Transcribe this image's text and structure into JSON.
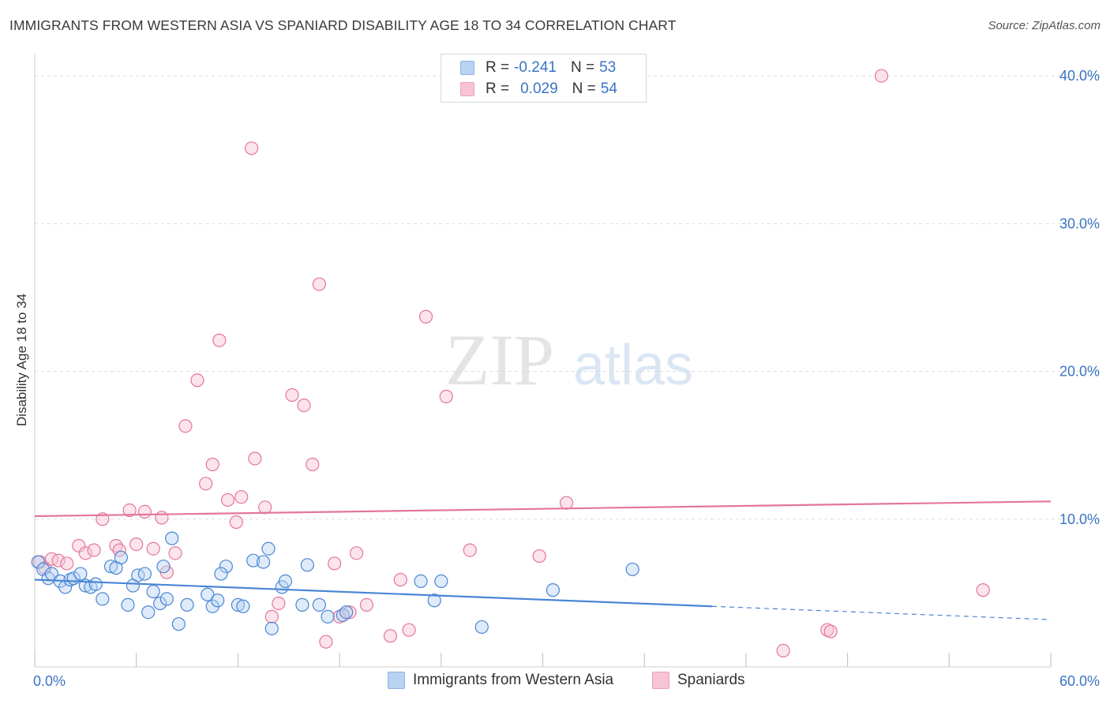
{
  "title": "IMMIGRANTS FROM WESTERN ASIA VS SPANIARD DISABILITY AGE 18 TO 34 CORRELATION CHART",
  "source": "Source: ZipAtlas.com",
  "watermark": {
    "part1": "ZIP",
    "part2": "atlas"
  },
  "legend_top": {
    "series1": {
      "r_label": "R =",
      "r_value": "-0.241",
      "n_label": "N =",
      "n_value": "53"
    },
    "series2": {
      "r_label": "R =",
      "r_value": "0.029",
      "n_label": "N =",
      "n_value": "54"
    }
  },
  "legend_bottom": {
    "series1": "Immigrants from Western Asia",
    "series2": "Spaniards"
  },
  "colors": {
    "blue": "#4a86d4",
    "blue_fill": "#b8d3f2",
    "pink": "#e4769a",
    "pink_fill": "#f7c4d4",
    "tick_text": "#3a74c4",
    "grid": "#dddddd"
  },
  "chart_data": {
    "type": "scatter",
    "title": "IMMIGRANTS FROM WESTERN ASIA VS SPANIARD DISABILITY AGE 18 TO 34 CORRELATION CHART",
    "xlabel": "",
    "ylabel": "Disability Age 18 to 34",
    "xlim": [
      0,
      60
    ],
    "ylim": [
      0,
      41.5
    ],
    "x_tick_labels": [
      {
        "value": 0,
        "label": "0.0%"
      },
      {
        "value": 60,
        "label": "60.0%"
      }
    ],
    "y_tick_labels": [
      {
        "value": 10,
        "label": "10.0%"
      },
      {
        "value": 20,
        "label": "20.0%"
      },
      {
        "value": 30,
        "label": "30.0%"
      },
      {
        "value": 40,
        "label": "40.0%"
      }
    ],
    "x_minor_ticks": [
      0,
      6,
      12,
      18,
      24,
      30,
      36,
      42,
      48,
      54,
      60
    ],
    "series": [
      {
        "name": "Immigrants from Western Asia",
        "color": "#4a86d4",
        "r": -0.241,
        "n": 53,
        "trend": {
          "x0": 0,
          "y0": 5.9,
          "x1": 40,
          "y1": 4.1,
          "dashed_to_x": 60,
          "dashed_to_y": 3.2
        },
        "points": [
          [
            0.2,
            7.1
          ],
          [
            0.5,
            6.6
          ],
          [
            0.8,
            6.0
          ],
          [
            1.0,
            6.3
          ],
          [
            1.5,
            5.8
          ],
          [
            1.8,
            5.4
          ],
          [
            2.1,
            5.9
          ],
          [
            2.3,
            6.0
          ],
          [
            2.7,
            6.3
          ],
          [
            3.0,
            5.5
          ],
          [
            3.3,
            5.4
          ],
          [
            3.6,
            5.6
          ],
          [
            4.0,
            4.6
          ],
          [
            4.5,
            6.8
          ],
          [
            4.8,
            6.7
          ],
          [
            5.1,
            7.4
          ],
          [
            5.5,
            4.2
          ],
          [
            5.8,
            5.5
          ],
          [
            6.1,
            6.2
          ],
          [
            6.5,
            6.3
          ],
          [
            6.7,
            3.7
          ],
          [
            7.0,
            5.1
          ],
          [
            7.4,
            4.3
          ],
          [
            7.6,
            6.8
          ],
          [
            7.8,
            4.6
          ],
          [
            8.1,
            8.7
          ],
          [
            8.5,
            2.9
          ],
          [
            9.0,
            4.2
          ],
          [
            10.2,
            4.9
          ],
          [
            10.5,
            4.1
          ],
          [
            10.8,
            4.5
          ],
          [
            11.3,
            6.8
          ],
          [
            11.0,
            6.3
          ],
          [
            12.0,
            4.2
          ],
          [
            12.3,
            4.1
          ],
          [
            12.9,
            7.2
          ],
          [
            13.5,
            7.1
          ],
          [
            13.8,
            8.0
          ],
          [
            14.0,
            2.6
          ],
          [
            14.6,
            5.4
          ],
          [
            14.8,
            5.8
          ],
          [
            15.8,
            4.2
          ],
          [
            16.1,
            6.9
          ],
          [
            16.8,
            4.2
          ],
          [
            17.3,
            3.4
          ],
          [
            18.2,
            3.5
          ],
          [
            18.4,
            3.7
          ],
          [
            22.8,
            5.8
          ],
          [
            23.6,
            4.5
          ],
          [
            24.0,
            5.8
          ],
          [
            26.4,
            2.7
          ],
          [
            30.6,
            5.2
          ],
          [
            35.3,
            6.6
          ]
        ]
      },
      {
        "name": "Spaniards",
        "color": "#e4769a",
        "r": 0.029,
        "n": 54,
        "trend": {
          "x0": 0,
          "y0": 10.2,
          "x1": 60,
          "y1": 11.2
        },
        "points": [
          [
            0.3,
            7.1
          ],
          [
            0.6,
            6.7
          ],
          [
            1.0,
            7.3
          ],
          [
            1.4,
            7.2
          ],
          [
            1.9,
            7.0
          ],
          [
            2.6,
            8.2
          ],
          [
            3.0,
            7.7
          ],
          [
            3.5,
            7.9
          ],
          [
            4.0,
            10.0
          ],
          [
            4.8,
            8.2
          ],
          [
            5.0,
            7.9
          ],
          [
            5.6,
            10.6
          ],
          [
            6.0,
            8.3
          ],
          [
            6.5,
            10.5
          ],
          [
            7.0,
            8.0
          ],
          [
            7.5,
            10.1
          ],
          [
            7.8,
            6.4
          ],
          [
            8.3,
            7.7
          ],
          [
            8.9,
            16.3
          ],
          [
            9.6,
            19.4
          ],
          [
            10.1,
            12.4
          ],
          [
            10.5,
            13.7
          ],
          [
            10.9,
            22.1
          ],
          [
            11.4,
            11.3
          ],
          [
            11.9,
            9.8
          ],
          [
            12.2,
            11.5
          ],
          [
            12.8,
            35.1
          ],
          [
            13.0,
            14.1
          ],
          [
            13.6,
            10.8
          ],
          [
            14.0,
            3.4
          ],
          [
            14.4,
            4.3
          ],
          [
            15.2,
            18.4
          ],
          [
            15.9,
            17.7
          ],
          [
            16.4,
            13.7
          ],
          [
            16.8,
            25.9
          ],
          [
            17.2,
            1.7
          ],
          [
            17.7,
            7.0
          ],
          [
            18.0,
            3.4
          ],
          [
            18.6,
            3.7
          ],
          [
            19.0,
            7.7
          ],
          [
            19.6,
            4.2
          ],
          [
            21.0,
            2.1
          ],
          [
            21.6,
            5.9
          ],
          [
            22.1,
            2.5
          ],
          [
            23.1,
            23.7
          ],
          [
            24.3,
            18.3
          ],
          [
            25.7,
            7.9
          ],
          [
            29.8,
            7.5
          ],
          [
            31.4,
            11.1
          ],
          [
            44.2,
            1.1
          ],
          [
            46.8,
            2.5
          ],
          [
            47.0,
            2.4
          ],
          [
            50.0,
            40.0
          ],
          [
            56.0,
            5.2
          ]
        ]
      }
    ]
  }
}
